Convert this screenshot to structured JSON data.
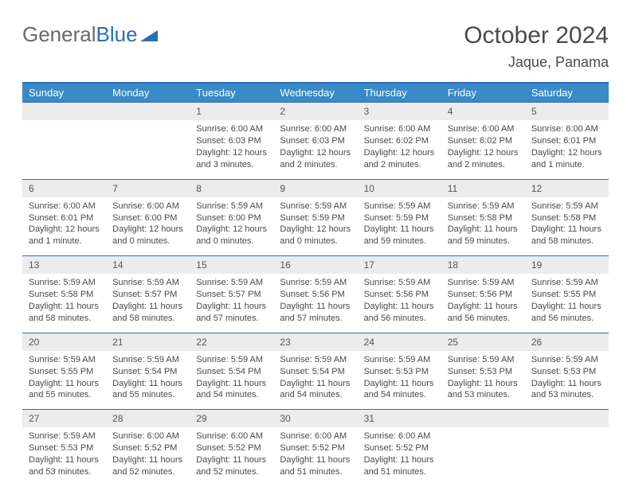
{
  "logo": {
    "part1": "General",
    "part2": "Blue"
  },
  "title": "October 2024",
  "location": "Jaque, Panama",
  "colors": {
    "header_bg": "#3a8ac9",
    "header_border": "#2d6cb5",
    "row_border": "#2d6cb5",
    "daynum_bg": "#ececec",
    "text": "#4a4a4a",
    "logo_gray": "#6a6a6a",
    "logo_blue": "#2d6cb5"
  },
  "weekdays": [
    "Sunday",
    "Monday",
    "Tuesday",
    "Wednesday",
    "Thursday",
    "Friday",
    "Saturday"
  ],
  "weeks": [
    [
      {
        "blank": true
      },
      {
        "blank": true
      },
      {
        "n": "1",
        "sr": "6:00 AM",
        "ss": "6:03 PM",
        "dl": "12 hours and 3 minutes."
      },
      {
        "n": "2",
        "sr": "6:00 AM",
        "ss": "6:03 PM",
        "dl": "12 hours and 2 minutes."
      },
      {
        "n": "3",
        "sr": "6:00 AM",
        "ss": "6:02 PM",
        "dl": "12 hours and 2 minutes."
      },
      {
        "n": "4",
        "sr": "6:00 AM",
        "ss": "6:02 PM",
        "dl": "12 hours and 2 minutes."
      },
      {
        "n": "5",
        "sr": "6:00 AM",
        "ss": "6:01 PM",
        "dl": "12 hours and 1 minute."
      }
    ],
    [
      {
        "n": "6",
        "sr": "6:00 AM",
        "ss": "6:01 PM",
        "dl": "12 hours and 1 minute."
      },
      {
        "n": "7",
        "sr": "6:00 AM",
        "ss": "6:00 PM",
        "dl": "12 hours and 0 minutes."
      },
      {
        "n": "8",
        "sr": "5:59 AM",
        "ss": "6:00 PM",
        "dl": "12 hours and 0 minutes."
      },
      {
        "n": "9",
        "sr": "5:59 AM",
        "ss": "5:59 PM",
        "dl": "12 hours and 0 minutes."
      },
      {
        "n": "10",
        "sr": "5:59 AM",
        "ss": "5:59 PM",
        "dl": "11 hours and 59 minutes."
      },
      {
        "n": "11",
        "sr": "5:59 AM",
        "ss": "5:58 PM",
        "dl": "11 hours and 59 minutes."
      },
      {
        "n": "12",
        "sr": "5:59 AM",
        "ss": "5:58 PM",
        "dl": "11 hours and 58 minutes."
      }
    ],
    [
      {
        "n": "13",
        "sr": "5:59 AM",
        "ss": "5:58 PM",
        "dl": "11 hours and 58 minutes."
      },
      {
        "n": "14",
        "sr": "5:59 AM",
        "ss": "5:57 PM",
        "dl": "11 hours and 58 minutes."
      },
      {
        "n": "15",
        "sr": "5:59 AM",
        "ss": "5:57 PM",
        "dl": "11 hours and 57 minutes."
      },
      {
        "n": "16",
        "sr": "5:59 AM",
        "ss": "5:56 PM",
        "dl": "11 hours and 57 minutes."
      },
      {
        "n": "17",
        "sr": "5:59 AM",
        "ss": "5:56 PM",
        "dl": "11 hours and 56 minutes."
      },
      {
        "n": "18",
        "sr": "5:59 AM",
        "ss": "5:56 PM",
        "dl": "11 hours and 56 minutes."
      },
      {
        "n": "19",
        "sr": "5:59 AM",
        "ss": "5:55 PM",
        "dl": "11 hours and 56 minutes."
      }
    ],
    [
      {
        "n": "20",
        "sr": "5:59 AM",
        "ss": "5:55 PM",
        "dl": "11 hours and 55 minutes."
      },
      {
        "n": "21",
        "sr": "5:59 AM",
        "ss": "5:54 PM",
        "dl": "11 hours and 55 minutes."
      },
      {
        "n": "22",
        "sr": "5:59 AM",
        "ss": "5:54 PM",
        "dl": "11 hours and 54 minutes."
      },
      {
        "n": "23",
        "sr": "5:59 AM",
        "ss": "5:54 PM",
        "dl": "11 hours and 54 minutes."
      },
      {
        "n": "24",
        "sr": "5:59 AM",
        "ss": "5:53 PM",
        "dl": "11 hours and 54 minutes."
      },
      {
        "n": "25",
        "sr": "5:59 AM",
        "ss": "5:53 PM",
        "dl": "11 hours and 53 minutes."
      },
      {
        "n": "26",
        "sr": "5:59 AM",
        "ss": "5:53 PM",
        "dl": "11 hours and 53 minutes."
      }
    ],
    [
      {
        "n": "27",
        "sr": "5:59 AM",
        "ss": "5:53 PM",
        "dl": "11 hours and 53 minutes."
      },
      {
        "n": "28",
        "sr": "6:00 AM",
        "ss": "5:52 PM",
        "dl": "11 hours and 52 minutes."
      },
      {
        "n": "29",
        "sr": "6:00 AM",
        "ss": "5:52 PM",
        "dl": "11 hours and 52 minutes."
      },
      {
        "n": "30",
        "sr": "6:00 AM",
        "ss": "5:52 PM",
        "dl": "11 hours and 51 minutes."
      },
      {
        "n": "31",
        "sr": "6:00 AM",
        "ss": "5:52 PM",
        "dl": "11 hours and 51 minutes."
      },
      {
        "blank": true
      },
      {
        "blank": true
      }
    ]
  ],
  "labels": {
    "sunrise": "Sunrise: ",
    "sunset": "Sunset: ",
    "daylight": "Daylight: "
  }
}
